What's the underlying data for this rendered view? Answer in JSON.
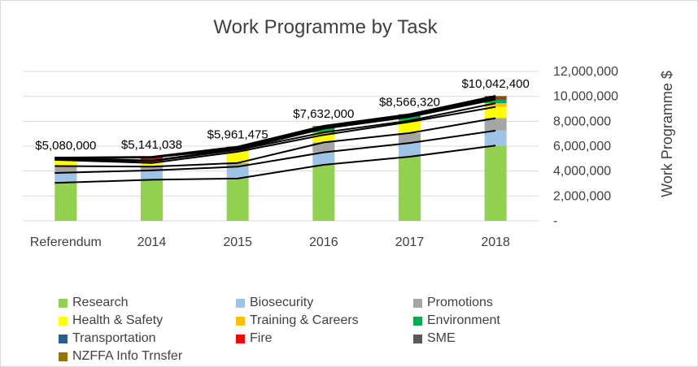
{
  "chart_data": {
    "type": "bar",
    "stacked": true,
    "title": "Work Programme by Task",
    "ylabel": "Work Programme $",
    "ylim": [
      0,
      12000000
    ],
    "y_ticks": [
      "-",
      "2,000,000",
      "4,000,000",
      "6,000,000",
      "8,000,000",
      "10,000,000",
      "12,000,000"
    ],
    "y_axis_side": "right",
    "grid": true,
    "legend_position": "bottom",
    "categories": [
      "Referendum",
      "2014",
      "2015",
      "2016",
      "2017",
      "2018"
    ],
    "totals_labels": [
      "$5,080,000",
      "$5,141,038",
      "$5,961,475",
      "$7,632,000",
      "$8,566,320",
      "$10,042,400"
    ],
    "series": [
      {
        "name": "Research",
        "color": "#92d050",
        "values": [
          3050000,
          3300000,
          3400000,
          4500000,
          5150000,
          6050000
        ]
      },
      {
        "name": "Biosecurity",
        "color": "#9dc3e6",
        "values": [
          800000,
          750000,
          950000,
          1000000,
          1100000,
          1200000
        ]
      },
      {
        "name": "Promotions",
        "color": "#a5a5a5",
        "values": [
          550000,
          300000,
          300000,
          800000,
          800000,
          1000000
        ]
      },
      {
        "name": "Health & Safety",
        "color": "#ffff00",
        "values": [
          500000,
          300000,
          900000,
          600000,
          900000,
          900000
        ]
      },
      {
        "name": "Training & Careers",
        "color": "#ffc000",
        "values": [
          30000,
          150000,
          150000,
          200000,
          100000,
          300000
        ]
      },
      {
        "name": "Environment",
        "color": "#00b050",
        "values": [
          100000,
          20000,
          30000,
          300000,
          300000,
          300000
        ]
      },
      {
        "name": "Transportation",
        "color": "#255e91",
        "values": [
          20000,
          20000,
          30000,
          60000,
          70000,
          100000
        ]
      },
      {
        "name": "Fire",
        "color": "#ff0000",
        "values": [
          0,
          240000,
          30000,
          60000,
          70000,
          60000
        ]
      },
      {
        "name": "SME",
        "color": "#595959",
        "values": [
          20000,
          40000,
          40000,
          60000,
          50000,
          80000
        ]
      },
      {
        "name": "NZFFA Info Trnsfer",
        "color": "#997300",
        "values": [
          10000,
          21038,
          131475,
          52000,
          26320,
          52400
        ]
      }
    ]
  }
}
